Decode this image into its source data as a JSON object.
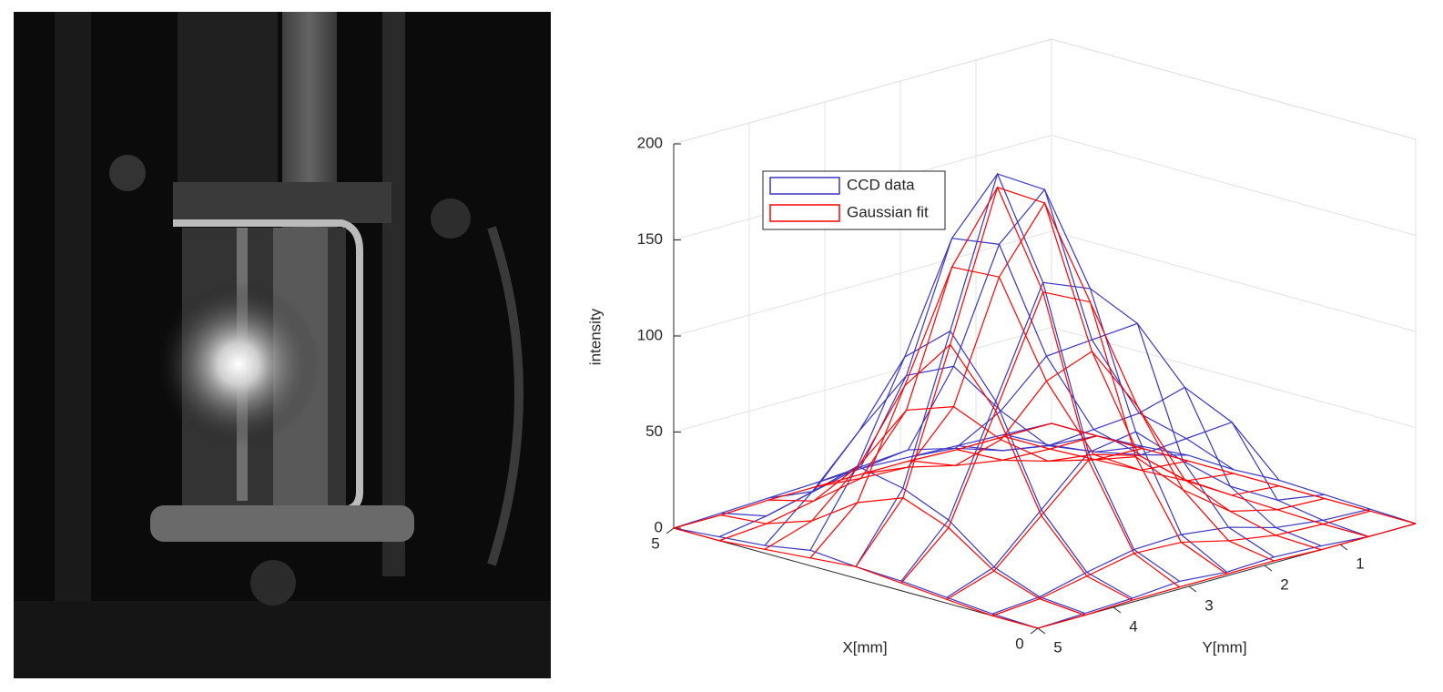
{
  "chart_data": {
    "type": "surface3d",
    "xlabel": "X[mm]",
    "ylabel": "Y[mm]",
    "zlabel": "intensity",
    "x": [
      0,
      0.625,
      1.25,
      1.875,
      2.5,
      3.125,
      3.75,
      4.375,
      5
    ],
    "y": [
      0,
      0.625,
      1.25,
      1.875,
      2.5,
      3.125,
      3.75,
      4.375,
      5
    ],
    "xlim": [
      0,
      5
    ],
    "ylim": [
      0,
      5
    ],
    "zlim": [
      0,
      200
    ],
    "xticks": [
      0,
      5
    ],
    "yticks": [
      1,
      2,
      3,
      4,
      5
    ],
    "zticks": [
      0,
      50,
      100,
      150,
      200
    ],
    "grid": true,
    "legend": "upper left",
    "series": [
      {
        "name": "CCD data",
        "color": "#3a36c4",
        "values": [
          [
            0,
            0,
            2,
            3,
            2,
            4,
            2,
            1,
            0
          ],
          [
            1,
            2,
            5,
            12,
            15,
            14,
            9,
            3,
            1
          ],
          [
            2,
            6,
            20,
            40,
            62,
            58,
            35,
            12,
            3
          ],
          [
            3,
            40,
            65,
            105,
            130,
            140,
            85,
            30,
            5
          ],
          [
            2,
            25,
            45,
            90,
            175,
            190,
            115,
            40,
            6
          ],
          [
            3,
            10,
            30,
            75,
            140,
            150,
            95,
            45,
            8
          ],
          [
            1,
            5,
            15,
            40,
            70,
            72,
            50,
            25,
            4
          ],
          [
            0,
            2,
            6,
            14,
            20,
            18,
            12,
            6,
            2
          ],
          [
            0,
            1,
            2,
            3,
            4,
            3,
            2,
            1,
            0
          ]
        ]
      },
      {
        "name": "Gaussian fit",
        "color": "#ff0000",
        "values": [
          [
            0,
            0,
            0,
            1,
            1,
            1,
            1,
            0,
            0
          ],
          [
            0,
            0,
            1,
            5,
            11,
            12,
            7,
            2,
            0
          ],
          [
            0,
            1,
            7,
            25,
            49,
            54,
            32,
            10,
            2
          ],
          [
            0,
            2,
            17,
            62,
            123,
            135,
            80,
            26,
            4
          ],
          [
            0,
            3,
            23,
            84,
            168,
            183,
            108,
            35,
            6
          ],
          [
            0,
            2,
            17,
            62,
            123,
            135,
            80,
            26,
            4
          ],
          [
            0,
            1,
            7,
            25,
            49,
            54,
            32,
            10,
            2
          ],
          [
            0,
            0,
            1,
            5,
            11,
            12,
            7,
            2,
            0
          ],
          [
            0,
            0,
            0,
            1,
            1,
            1,
            1,
            0,
            0
          ]
        ]
      }
    ]
  }
}
